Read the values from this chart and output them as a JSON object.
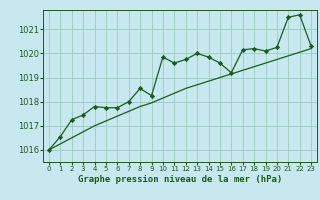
{
  "xlabel": "Graphe pression niveau de la mer (hPa)",
  "ylabel": "",
  "bg_color": "#c8e8f0",
  "grid_color": "#99ccbb",
  "line_color": "#1a5c1a",
  "marker_color": "#1a5c1a",
  "x_values": [
    0,
    1,
    2,
    3,
    4,
    5,
    6,
    7,
    8,
    9,
    10,
    11,
    12,
    13,
    14,
    15,
    16,
    17,
    18,
    19,
    20,
    21,
    22,
    23
  ],
  "y_main": [
    1016.0,
    1016.55,
    1017.25,
    1017.45,
    1017.8,
    1017.75,
    1017.75,
    1018.0,
    1018.55,
    1018.25,
    1019.85,
    1019.6,
    1019.75,
    1020.0,
    1019.85,
    1019.6,
    1019.2,
    1020.15,
    1020.2,
    1020.1,
    1020.25,
    1021.5,
    1021.6,
    1020.3
  ],
  "y_trend": [
    1016.0,
    1016.25,
    1016.5,
    1016.75,
    1017.0,
    1017.2,
    1017.4,
    1017.6,
    1017.8,
    1017.95,
    1018.15,
    1018.35,
    1018.55,
    1018.7,
    1018.85,
    1019.0,
    1019.15,
    1019.3,
    1019.45,
    1019.6,
    1019.75,
    1019.9,
    1020.05,
    1020.2
  ],
  "ylim": [
    1015.5,
    1021.8
  ],
  "yticks": [
    1016,
    1017,
    1018,
    1019,
    1020,
    1021
  ],
  "xlim": [
    -0.5,
    23.5
  ],
  "xticks": [
    0,
    1,
    2,
    3,
    4,
    5,
    6,
    7,
    8,
    9,
    10,
    11,
    12,
    13,
    14,
    15,
    16,
    17,
    18,
    19,
    20,
    21,
    22,
    23
  ]
}
